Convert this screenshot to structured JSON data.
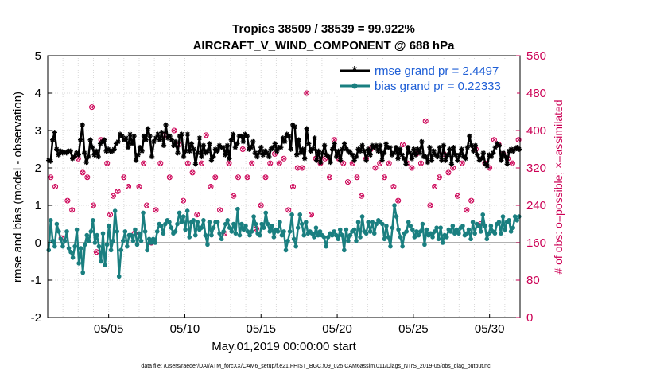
{
  "chart_data": {
    "type": "line",
    "title": [
      "Tropics 38509 / 38539 = 99.922%",
      "AIRCRAFT_V_WIND_COMPONENT @ 688 hPa"
    ],
    "xlabel": "May.01,2019 00:00:00 start",
    "ylabel": "rmse and bias (model - observation)",
    "ylabel_right": "# of obs: o=possible; ×=assimilated",
    "footer": "data file: /Users/raeder/DAI/ATM_forcXX/CAM6_setup/f.e21.FHIST_BGC.f09_025.CAM6assim.011/Diags_NTrS_2019-05/obs_diag_output.nc",
    "xlim": [
      1.0,
      32.0
    ],
    "ylim": [
      -2,
      5
    ],
    "ylim_right": [
      0,
      560
    ],
    "x_ticks": [
      5,
      10,
      15,
      20,
      25,
      30
    ],
    "x_tick_labels": [
      "05/05",
      "05/10",
      "05/15",
      "05/20",
      "05/25",
      "05/30"
    ],
    "y_ticks": [
      -2,
      -1,
      0,
      1,
      2,
      3,
      4,
      5
    ],
    "y_tick_labels": [
      "-2",
      "-1",
      "0",
      "1",
      "2",
      "3",
      "4",
      "5"
    ],
    "y_right_ticks": [
      0,
      80,
      160,
      240,
      320,
      400,
      480,
      560
    ],
    "y_right_tick_labels": [
      "0",
      "80",
      "160",
      "240",
      "320",
      "400",
      "480",
      "560"
    ],
    "grid": true,
    "zero_line": 0,
    "series": [
      {
        "name": "rmse",
        "legend": "rmse grand pr = 2.4497",
        "color": "#000000",
        "marker": "star",
        "values": [
          2.2,
          2.18,
          2.75,
          2.95,
          2.5,
          2.35,
          2.45,
          2.4,
          2.42,
          2.4,
          2.45,
          2.45,
          2.25,
          2.3,
          2.4,
          2.35,
          2.75,
          3.15,
          2.4,
          2.15,
          2.3,
          2.75,
          2.55,
          2.35,
          2.45,
          2.3,
          2.65,
          2.7,
          2.75,
          2.45,
          2.5,
          2.45,
          2.45,
          2.5,
          2.65,
          2.7,
          2.9,
          2.85,
          2.75,
          2.8,
          2.55,
          2.9,
          2.65,
          2.85,
          2.2,
          2.35,
          2.55,
          2.45,
          2.85,
          2.75,
          3.05,
          2.85,
          2.3,
          2.7,
          2.8,
          2.9,
          2.75,
          2.95,
          2.6,
          3.15,
          2.8,
          2.85,
          2.75,
          2.6,
          2.7,
          2.4,
          2.85,
          2.9,
          2.3,
          2.45,
          2.9,
          2.45,
          2.65,
          2.5,
          2.1,
          2.4,
          2.8,
          2.3,
          2.6,
          2.4,
          2.45,
          2.65,
          2.2,
          2.3,
          2.5,
          2.45,
          2.6,
          2.55,
          2.55,
          2.35,
          2.6,
          2.25,
          2.75,
          2.9,
          2.55,
          2.65,
          2.85,
          2.85,
          2.7,
          2.9,
          2.85,
          2.5,
          2.55,
          2.7,
          2.4,
          2.3,
          2.4,
          2.55,
          2.35,
          2.45,
          2.4,
          2.3,
          2.5,
          2.55,
          2.65,
          2.45,
          2.55,
          2.55,
          2.8,
          2.7,
          2.9,
          2.85,
          2.5,
          3.15,
          3.1,
          2.35,
          2.75,
          2.4,
          2.5,
          2.25,
          3.05,
          2.65,
          2.45,
          2.5,
          2.8,
          2.2,
          2.45,
          2.15,
          2.4,
          2.6,
          2.35,
          2.3,
          2.15,
          2.5,
          2.65,
          2.3,
          2.45,
          2.2,
          2.5,
          2.65,
          2.5,
          2.45,
          2.4,
          2.35,
          2.2,
          2.3,
          2.5,
          2.45,
          2.6,
          2.45,
          2.2,
          2.5,
          2.35,
          2.6,
          2.55,
          2.6,
          2.45,
          2.6,
          2.2,
          2.4,
          2.65,
          2.55,
          2.55,
          2.35,
          2.4,
          2.55,
          2.25,
          2.5,
          2.35,
          2.25,
          2.1,
          2.55,
          2.4,
          2.25,
          2.5,
          2.35,
          2.5,
          2.4,
          2.7,
          2.3,
          2.3,
          2.15,
          2.55,
          2.2,
          2.45,
          2.35,
          2.3,
          2.55,
          2.2,
          2.6,
          2.2,
          2.35,
          2.5,
          2.1,
          2.55,
          2.35,
          2.2,
          2.35,
          2.5,
          2.3,
          2.25,
          2.55,
          2.85,
          2.6,
          2.45,
          2.6,
          2.35,
          2.2,
          2.25,
          2.4,
          2.1,
          2.05,
          2.35,
          2.3,
          2.4,
          2.55,
          2.65,
          2.6,
          2.2,
          2.4,
          2.3,
          2.1,
          2.45,
          2.5,
          2.45,
          2.5,
          2.55,
          2.5
        ]
      },
      {
        "name": "bias",
        "legend": "bias grand pr = 0.22333",
        "color": "#1a7f80",
        "marker": "dot",
        "values": [
          -0.2,
          0.6,
          0.05,
          -0.1,
          0.5,
          0.3,
          0.1,
          -0.1,
          0.05,
          0.3,
          -0.15,
          -0.25,
          -0.4,
          -0.1,
          0.35,
          -0.55,
          -0.15,
          -0.8,
          -0.05,
          0.2,
          0.05,
          0.3,
          0.6,
          0.0,
          0.2,
          -0.1,
          -0.5,
          0.25,
          -0.6,
          -0.05,
          0.45,
          -0.2,
          0.05,
          0.85,
          0.3,
          -0.9,
          -0.2,
          0.05,
          0.3,
          -0.1,
          0.2,
          0.2,
          0.05,
          0.35,
          -0.05,
          0.25,
          0.05,
          0.8,
          0.3,
          -0.2,
          0.1,
          0.0,
          0.1,
          0.0,
          0.3,
          0.5,
          0.45,
          0.25,
          0.5,
          0.6,
          0.55,
          0.4,
          0.25,
          0.3,
          0.5,
          0.8,
          0.55,
          0.7,
          0.35,
          0.85,
          0.15,
          0.55,
          0.6,
          0.2,
          0.55,
          0.35,
          0.4,
          0.6,
          0.2,
          -0.05,
          0.55,
          0.2,
          0.4,
          0.55,
          0.55,
          0.25,
          0.1,
          0.3,
          0.5,
          0.6,
          0.4,
          0.3,
          0.5,
          0.25,
          0.9,
          0.2,
          0.5,
          0.35,
          0.45,
          0.3,
          0.2,
          0.3,
          0.7,
          0.5,
          0.25,
          0.2,
          0.5,
          0.4,
          0.8,
          0.5,
          0.3,
          0.45,
          0.15,
          0.35,
          0.3,
          0.55,
          0.2,
          0.3,
          -0.2,
          0.05,
          0.3,
          0.75,
          0.1,
          -0.1,
          0.4,
          0.75,
          0.5,
          0.2,
          0.55,
          0.25,
          0.3,
          0.25,
          0.15,
          0.4,
          0.2,
          0.3,
          0.2,
          0.15,
          -0.1,
          0.15,
          0.25,
          0.2,
          0.3,
          0.2,
          0.1,
          0.35,
          0.2,
          -0.2,
          0.35,
          0.05,
          0.2,
          0.3,
          0.35,
          0.05,
          0.55,
          0.15,
          0.7,
          0.3,
          0.25,
          0.55,
          0.3,
          0.55,
          0.25,
          0.5,
          0.6,
          0.55,
          0.5,
          0.1,
          0.45,
          0.15,
          -0.1,
          0.4,
          1.0,
          0.7,
          0.35,
          0.15,
          -0.1,
          0.25,
          0.3,
          0.55,
          0.45,
          0.35,
          0.15,
          0.3,
          0.2,
          0.3,
          0.5,
          -0.05,
          0.35,
          0.2,
          0.25,
          0.15,
          0.3,
          0.4,
          0.1,
          0.4,
          0.0,
          0.2,
          0.15,
          0.35,
          0.3,
          0.45,
          0.25,
          0.35,
          0.25,
          0.4,
          0.45,
          0.2,
          0.25,
          0.35,
          0.1,
          0.55,
          0.25,
          0.5,
          0.45,
          0.3,
          0.75,
          0.45,
          0.1,
          0.25,
          0.45,
          0.3,
          0.25,
          0.5,
          0.55,
          0.25,
          0.7,
          0.35,
          0.55,
          0.6,
          0.3,
          0.4,
          0.7,
          0.6,
          0.7
        ]
      },
      {
        "name": "obs_possible",
        "color": "#cc0055",
        "marker": "circle",
        "axis": "right",
        "x": [
          1.2,
          1.5,
          1.9,
          2.3,
          2.6,
          3.0,
          3.3,
          3.6,
          3.9,
          4.0,
          4.2,
          4.5,
          4.9,
          5.1,
          5.3,
          5.6,
          6.0,
          6.3,
          6.7,
          7.0,
          7.3,
          7.5,
          7.8,
          8.1,
          8.4,
          8.7,
          9.0,
          9.3,
          9.6,
          9.9,
          10.2,
          10.5,
          10.8,
          11.1,
          11.4,
          11.7,
          12.0,
          12.3,
          12.6,
          12.9,
          13.2,
          13.5,
          13.8,
          14.1,
          14.4,
          14.7,
          15.0,
          15.3,
          15.6,
          15.9,
          16.2,
          16.5,
          16.8,
          17.1,
          17.4,
          17.7,
          18.0,
          18.3,
          18.6,
          18.9,
          19.2,
          19.5,
          19.8,
          20.1,
          20.4,
          20.7,
          21.0,
          21.3,
          21.6,
          21.9,
          22.2,
          22.5,
          22.8,
          23.1,
          23.4,
          23.7,
          24.0,
          24.3,
          24.6,
          24.9,
          25.2,
          25.5,
          25.8,
          26.1,
          26.4,
          26.7,
          27.0,
          27.3,
          27.6,
          27.9,
          28.2,
          28.5,
          28.8,
          29.1,
          29.4,
          29.7,
          30.0,
          30.3,
          30.6,
          30.9,
          31.2,
          31.5,
          31.9
        ],
        "values": [
          300,
          280,
          170,
          250,
          230,
          340,
          310,
          300,
          450,
          240,
          140,
          380,
          330,
          220,
          260,
          270,
          300,
          280,
          180,
          280,
          330,
          240,
          160,
          230,
          330,
          390,
          300,
          400,
          370,
          250,
          330,
          310,
          220,
          330,
          390,
          280,
          300,
          230,
          180,
          330,
          260,
          300,
          360,
          300,
          330,
          190,
          240,
          300,
          330,
          350,
          330,
          340,
          230,
          280,
          320,
          320,
          480,
          220,
          340,
          330,
          340,
          300,
          380,
          340,
          330,
          290,
          330,
          300,
          260,
          340,
          360,
          320,
          330,
          300,
          330,
          280,
          250,
          370,
          330,
          320,
          350,
          330,
          420,
          240,
          280,
          300,
          350,
          310,
          320,
          260,
          330,
          230,
          250,
          360,
          200,
          330,
          320,
          380,
          370,
          350,
          340,
          330,
          380
        ]
      },
      {
        "name": "obs_assimilated",
        "color": "#cc0055",
        "marker": "x",
        "axis": "right",
        "x": [
          1.2,
          1.5,
          1.9,
          2.3,
          2.6,
          3.0,
          3.3,
          3.6,
          3.9,
          4.0,
          4.2,
          4.5,
          4.9,
          5.1,
          5.3,
          5.6,
          6.0,
          6.3,
          6.7,
          7.0,
          7.3,
          7.5,
          7.8,
          8.1,
          8.4,
          8.7,
          9.0,
          9.3,
          9.6,
          9.9,
          10.2,
          10.5,
          10.8,
          11.1,
          11.4,
          11.7,
          12.0,
          12.3,
          12.6,
          12.9,
          13.2,
          13.5,
          13.8,
          14.1,
          14.4,
          14.7,
          15.0,
          15.3,
          15.6,
          15.9,
          16.2,
          16.5,
          16.8,
          17.1,
          17.4,
          17.7,
          18.0,
          18.3,
          18.6,
          18.9,
          19.2,
          19.5,
          19.8,
          20.1,
          20.4,
          20.7,
          21.0,
          21.3,
          21.6,
          21.9,
          22.2,
          22.5,
          22.8,
          23.1,
          23.4,
          23.7,
          24.0,
          24.3,
          24.6,
          24.9,
          25.2,
          25.5,
          25.8,
          26.1,
          26.4,
          26.7,
          27.0,
          27.3,
          27.6,
          27.9,
          28.2,
          28.5,
          28.8,
          29.1,
          29.4,
          29.7,
          30.0,
          30.3,
          30.6,
          30.9,
          31.2,
          31.5,
          31.9
        ],
        "values": [
          300,
          280,
          170,
          250,
          230,
          340,
          310,
          300,
          450,
          240,
          140,
          380,
          330,
          220,
          260,
          270,
          300,
          280,
          180,
          280,
          330,
          240,
          160,
          230,
          330,
          390,
          300,
          400,
          370,
          250,
          330,
          310,
          220,
          330,
          390,
          280,
          300,
          230,
          180,
          330,
          260,
          300,
          360,
          300,
          330,
          190,
          240,
          300,
          330,
          350,
          330,
          340,
          230,
          280,
          320,
          320,
          480,
          220,
          340,
          330,
          340,
          300,
          380,
          340,
          330,
          290,
          330,
          300,
          260,
          340,
          360,
          320,
          330,
          300,
          330,
          280,
          250,
          370,
          330,
          320,
          350,
          330,
          420,
          240,
          280,
          300,
          350,
          310,
          320,
          260,
          330,
          230,
          250,
          360,
          200,
          330,
          320,
          380,
          370,
          350,
          340,
          330,
          380
        ]
      }
    ]
  }
}
